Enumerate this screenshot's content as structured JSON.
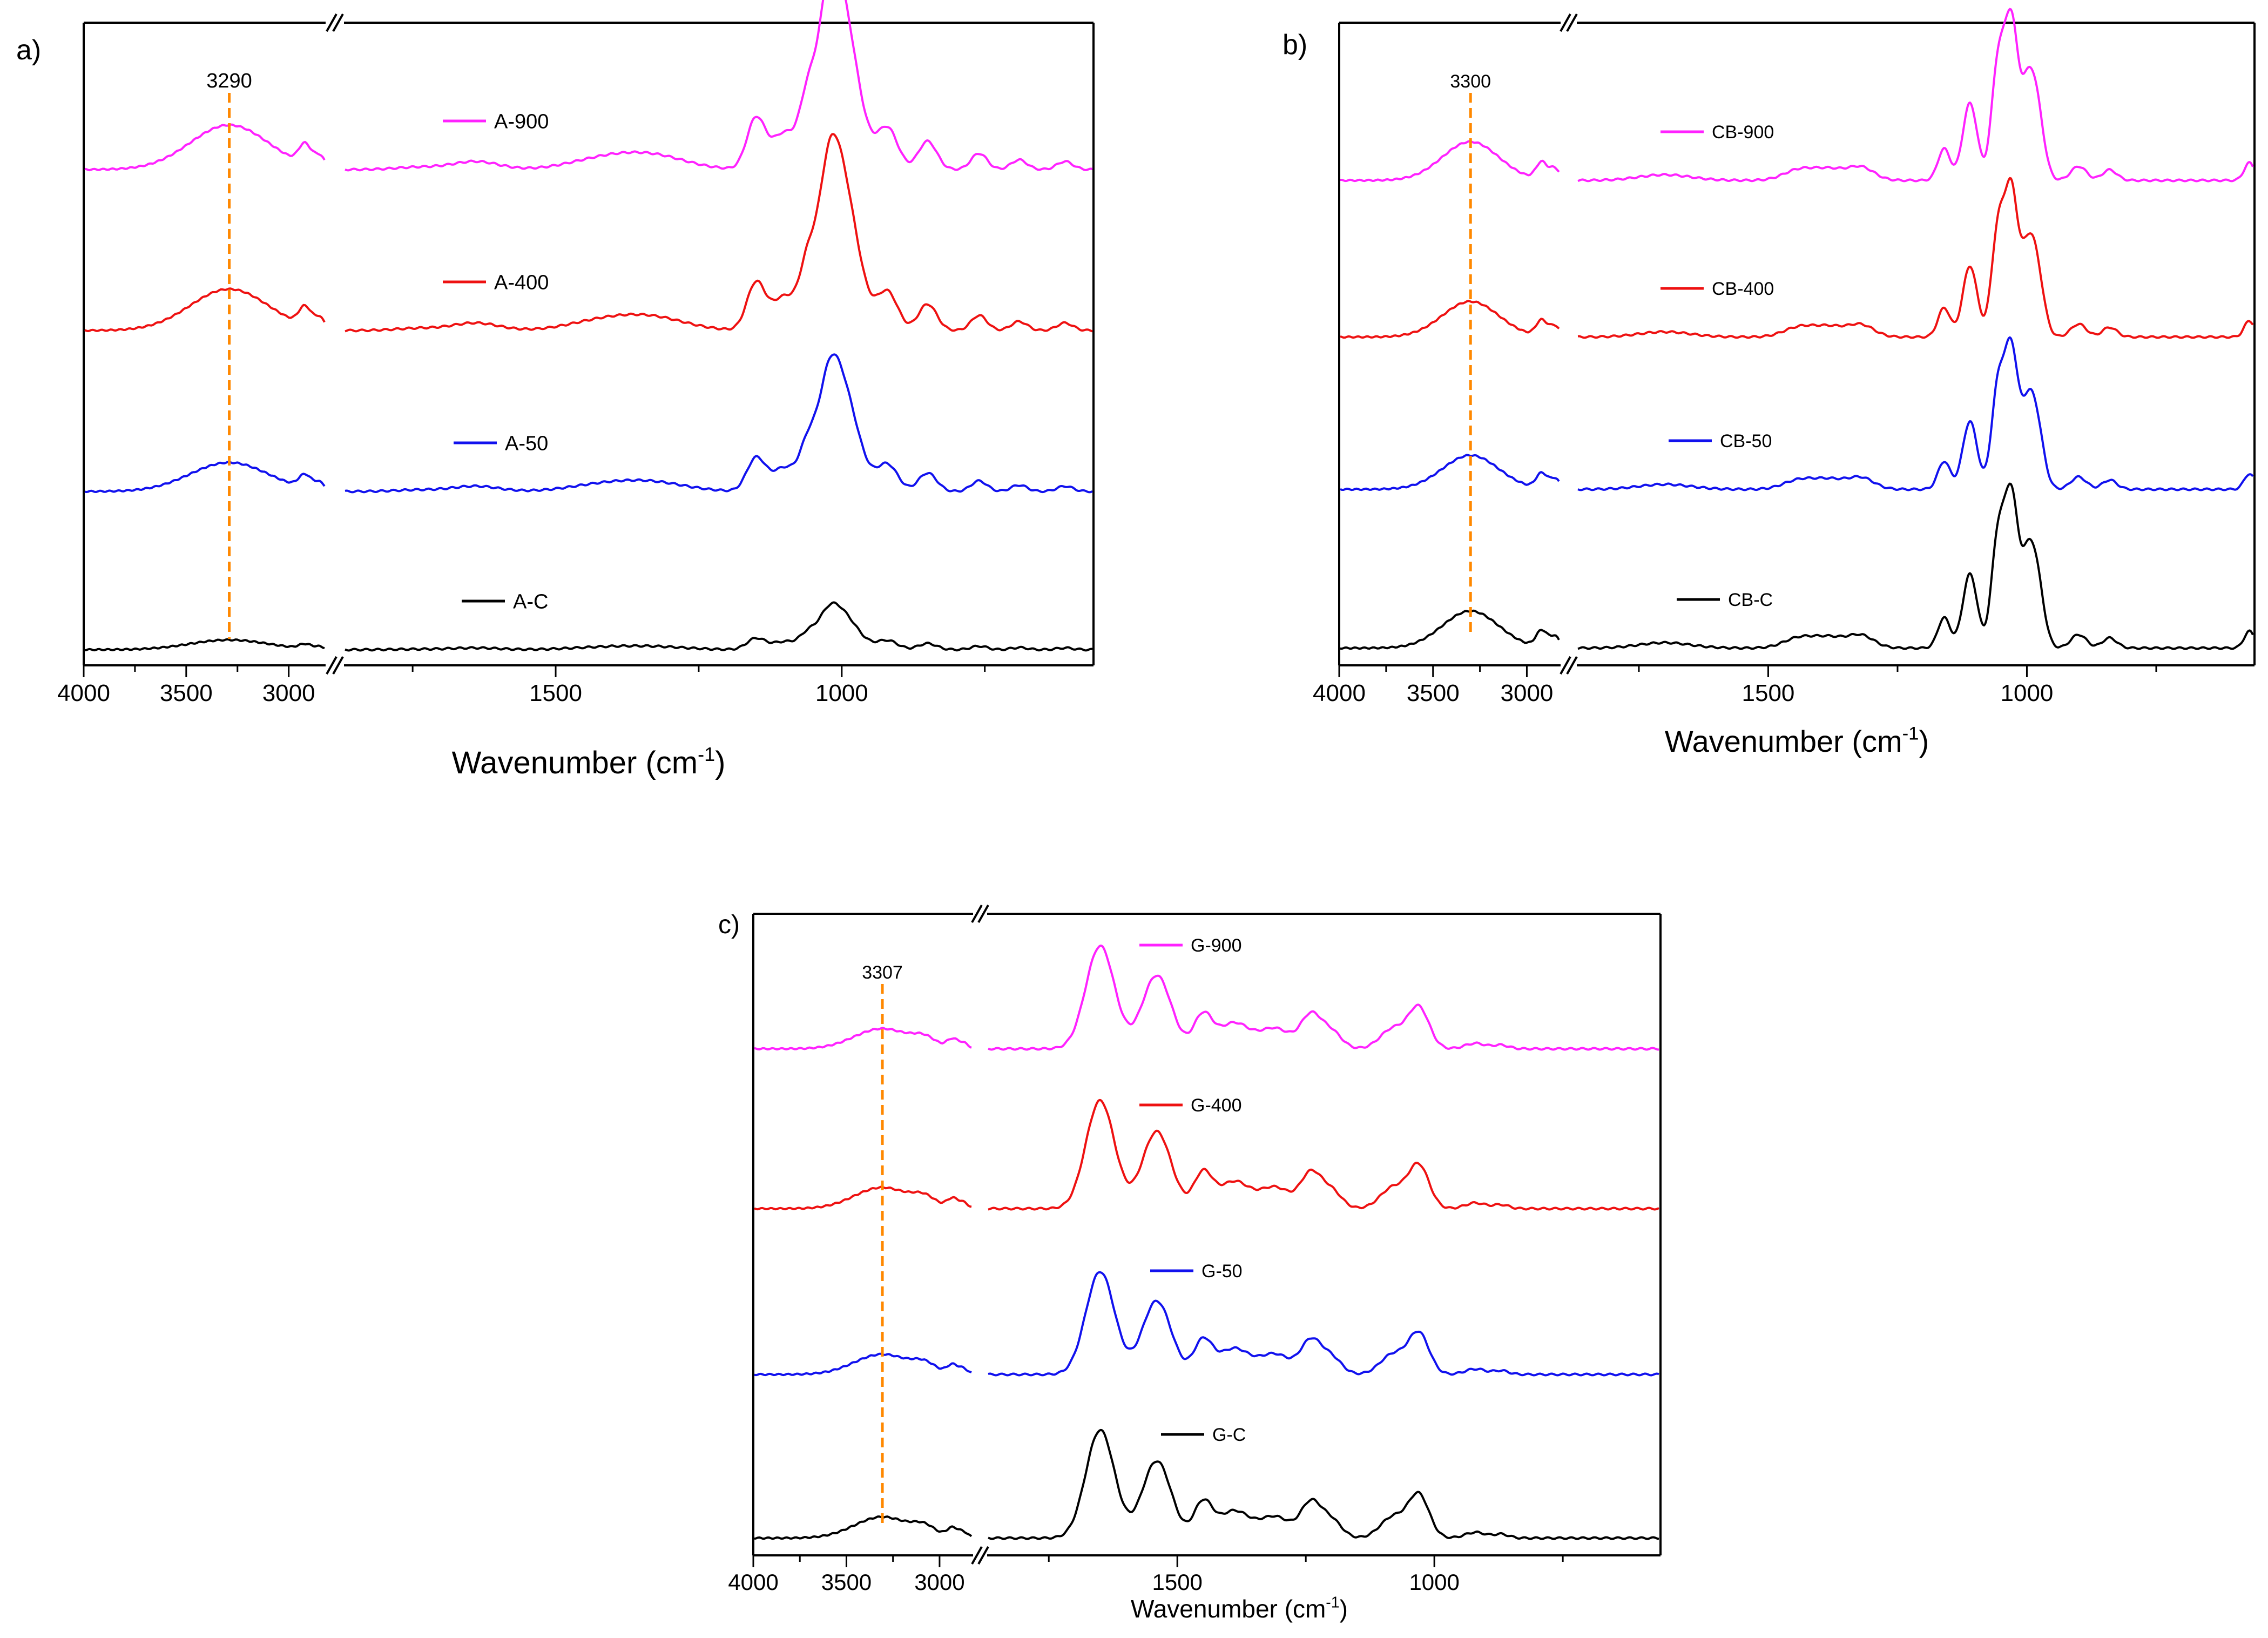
{
  "figure": {
    "xlabel_main": "Wavenumber (cm",
    "xlabel_sup": "-1",
    "xlabel_close": ")"
  },
  "colors": {
    "magenta": "#ff22ff",
    "red": "#ee1111",
    "blue": "#1111ee",
    "black": "#000000",
    "guide": "#ff8800"
  },
  "chart_data": [
    {
      "panel": "a)",
      "type": "line",
      "xlabel": "Wavenumber (cm-1)",
      "x_left_range": [
        4000,
        2820
      ],
      "x_right_range": [
        1870,
        560
      ],
      "left_ticks": [
        4000,
        3500,
        3000
      ],
      "right_ticks": [
        1500,
        1000
      ],
      "marker": {
        "x": 3290,
        "label": "3290"
      },
      "peaks_left": [
        {
          "c": 3290,
          "w": 190,
          "h": 1.0
        },
        {
          "c": 2920,
          "w": 30,
          "h": 0.45
        },
        {
          "c": 2850,
          "w": 25,
          "h": 0.25
        }
      ],
      "peaks_right": [
        {
          "c": 1740,
          "w": 40,
          "h": 0.03
        },
        {
          "c": 1640,
          "w": 40,
          "h": 0.1
        },
        {
          "c": 1420,
          "w": 60,
          "h": 0.12
        },
        {
          "c": 1330,
          "w": 60,
          "h": 0.16
        },
        {
          "c": 1150,
          "w": 16,
          "h": 0.62
        },
        {
          "c": 1100,
          "w": 22,
          "h": 0.45
        },
        {
          "c": 1060,
          "w": 14,
          "h": 0.7
        },
        {
          "c": 1025,
          "w": 18,
          "h": 1.1
        },
        {
          "c": 1000,
          "w": 28,
          "h": 1.92
        },
        {
          "c": 920,
          "w": 18,
          "h": 0.5
        },
        {
          "c": 850,
          "w": 16,
          "h": 0.35
        },
        {
          "c": 760,
          "w": 14,
          "h": 0.2
        },
        {
          "c": 690,
          "w": 14,
          "h": 0.12
        },
        {
          "c": 610,
          "w": 14,
          "h": 0.1
        }
      ],
      "series": [
        {
          "name": "A-900",
          "color": "#ff22ff",
          "amp": 1.0
        },
        {
          "name": "A-400",
          "color": "#ee1111",
          "amp": 0.93
        },
        {
          "name": "A-50",
          "color": "#1111ee",
          "amp": 0.65
        },
        {
          "name": "A-C",
          "color": "#000000",
          "amp": 0.22
        }
      ]
    },
    {
      "panel": "b)",
      "type": "line",
      "xlabel": "Wavenumber (cm-1)",
      "x_left_range": [
        4000,
        2820
      ],
      "x_right_range": [
        1870,
        560
      ],
      "left_ticks": [
        4000,
        3500,
        3000
      ],
      "right_ticks": [
        1500,
        1000
      ],
      "marker": {
        "x": 3300,
        "label": "3300"
      },
      "peaks_left": [
        {
          "c": 3300,
          "w": 150,
          "h": 1.0
        },
        {
          "c": 2920,
          "w": 30,
          "h": 0.45
        },
        {
          "c": 2850,
          "w": 25,
          "h": 0.3
        }
      ],
      "peaks_right": [
        {
          "c": 1700,
          "w": 50,
          "h": 0.08
        },
        {
          "c": 1440,
          "w": 30,
          "h": 0.15
        },
        {
          "c": 1380,
          "w": 30,
          "h": 0.15
        },
        {
          "c": 1320,
          "w": 25,
          "h": 0.18
        },
        {
          "c": 1160,
          "w": 12,
          "h": 0.45
        },
        {
          "c": 1110,
          "w": 14,
          "h": 1.1
        },
        {
          "c": 1055,
          "w": 13,
          "h": 1.7
        },
        {
          "c": 1030,
          "w": 12,
          "h": 2.0
        },
        {
          "c": 1000,
          "w": 15,
          "h": 1.2
        },
        {
          "c": 980,
          "w": 14,
          "h": 0.8
        },
        {
          "c": 900,
          "w": 15,
          "h": 0.2
        },
        {
          "c": 840,
          "w": 14,
          "h": 0.15
        },
        {
          "c": 570,
          "w": 10,
          "h": 0.25
        }
      ],
      "series": [
        {
          "name": "CB-900",
          "color": "#ff22ff",
          "amp": 1.0
        },
        {
          "name": "CB-400",
          "color": "#ee1111",
          "amp": 0.92
        },
        {
          "name": "CB-50",
          "color": "#1111ee",
          "amp": 0.88
        },
        {
          "name": "CB-C",
          "color": "#000000",
          "amp": 0.96
        }
      ]
    },
    {
      "panel": "c)",
      "type": "line",
      "xlabel": "Wavenumber (cm-1)",
      "x_left_range": [
        4000,
        2820
      ],
      "x_right_range": [
        1870,
        560
      ],
      "left_ticks": [
        4000,
        3500,
        3000
      ],
      "right_ticks": [
        1500,
        1000
      ],
      "marker": {
        "x": 3307,
        "label": "3307"
      },
      "peaks_left": [
        {
          "c": 3307,
          "w": 150,
          "h": 1.0
        },
        {
          "c": 3080,
          "w": 60,
          "h": 0.4
        },
        {
          "c": 2930,
          "w": 30,
          "h": 0.45
        },
        {
          "c": 2870,
          "w": 25,
          "h": 0.25
        }
      ],
      "peaks_right": [
        {
          "c": 1650,
          "w": 28,
          "h": 2.8
        },
        {
          "c": 1540,
          "w": 28,
          "h": 2.0
        },
        {
          "c": 1450,
          "w": 18,
          "h": 0.9
        },
        {
          "c": 1390,
          "w": 30,
          "h": 0.7
        },
        {
          "c": 1310,
          "w": 30,
          "h": 0.55
        },
        {
          "c": 1240,
          "w": 20,
          "h": 0.9
        },
        {
          "c": 1200,
          "w": 20,
          "h": 0.45
        },
        {
          "c": 1080,
          "w": 25,
          "h": 0.55
        },
        {
          "c": 1030,
          "w": 20,
          "h": 1.1
        },
        {
          "c": 920,
          "w": 20,
          "h": 0.15
        },
        {
          "c": 870,
          "w": 15,
          "h": 0.1
        }
      ],
      "series": [
        {
          "name": "G-900",
          "color": "#ff22ff",
          "amp": 1.0
        },
        {
          "name": "G-400",
          "color": "#ee1111",
          "amp": 1.05
        },
        {
          "name": "G-50",
          "color": "#1111ee",
          "amp": 1.0
        },
        {
          "name": "G-C",
          "color": "#000000",
          "amp": 1.05
        }
      ]
    }
  ]
}
